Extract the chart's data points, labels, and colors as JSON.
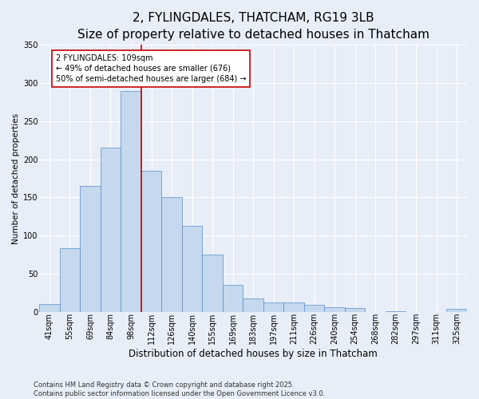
{
  "title": "2, FYLINGDALES, THATCHAM, RG19 3LB",
  "subtitle": "Size of property relative to detached houses in Thatcham",
  "xlabel": "Distribution of detached houses by size in Thatcham",
  "ylabel": "Number of detached properties",
  "categories": [
    "41sqm",
    "55sqm",
    "69sqm",
    "84sqm",
    "98sqm",
    "112sqm",
    "126sqm",
    "140sqm",
    "155sqm",
    "169sqm",
    "183sqm",
    "197sqm",
    "211sqm",
    "226sqm",
    "240sqm",
    "254sqm",
    "268sqm",
    "282sqm",
    "297sqm",
    "311sqm",
    "325sqm"
  ],
  "values": [
    10,
    83,
    165,
    215,
    290,
    185,
    150,
    113,
    75,
    35,
    17,
    12,
    12,
    9,
    6,
    5,
    0,
    1,
    0,
    0,
    4
  ],
  "bar_color": "#c5d8ed",
  "bar_edge_color": "#5b8dc8",
  "bar_edge_width": 0.5,
  "vline_x_index": 5,
  "vline_color": "#cc0000",
  "annotation_text": "2 FYLINGDALES: 109sqm\n← 49% of detached houses are smaller (676)\n50% of semi-detached houses are larger (684) →",
  "annotation_box_color": "#ffffff",
  "annotation_box_edge": "#cc0000",
  "ylim": [
    0,
    350
  ],
  "yticks": [
    0,
    50,
    100,
    150,
    200,
    250,
    300,
    350
  ],
  "background_color": "#e8eef8",
  "plot_bg_color": "#e8eef8",
  "footer": "Contains HM Land Registry data © Crown copyright and database right 2025.\nContains public sector information licensed under the Open Government Licence v3.0.",
  "title_fontsize": 11,
  "subtitle_fontsize": 9.5,
  "xlabel_fontsize": 8.5,
  "ylabel_fontsize": 7.5,
  "tick_fontsize": 7,
  "annotation_fontsize": 7,
  "footer_fontsize": 6
}
